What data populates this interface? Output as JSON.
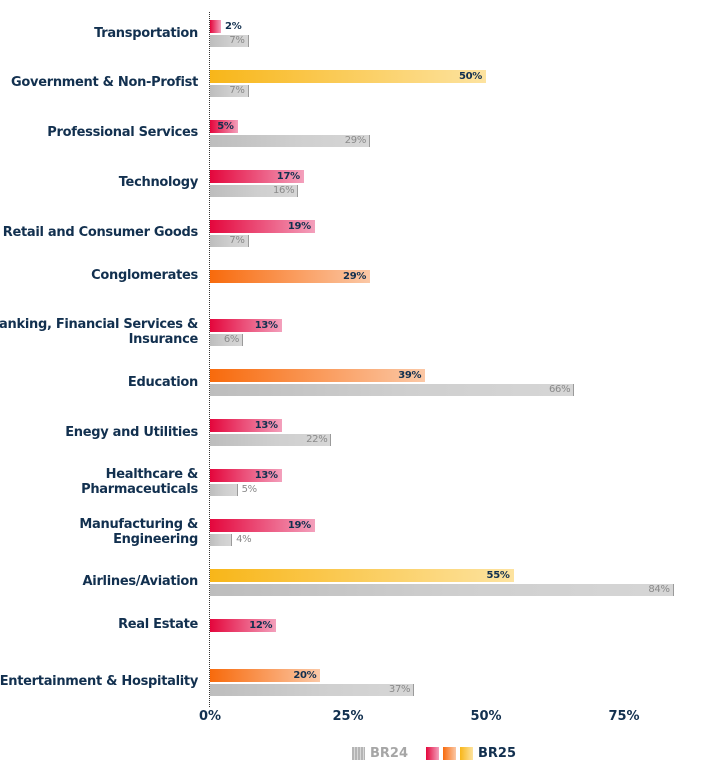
{
  "chart_data": {
    "type": "bar",
    "orientation": "horizontal",
    "title": "",
    "xlabel": "",
    "ylabel": "",
    "xlim": [
      0,
      85
    ],
    "x_ticks": [
      "0%",
      "25%",
      "50%",
      "75%"
    ],
    "x_tick_values": [
      0,
      25,
      50,
      75
    ],
    "grid": false,
    "legend_position": "bottom",
    "categories": [
      "Transportation",
      "Government & Non-Profist",
      "Professional Services",
      "Technology",
      "Retail and Consumer Goods",
      "Conglomerates",
      "Banking, Financial Services & Insurance",
      "Education",
      "Enegy and Utilities",
      "Healthcare & Pharmaceuticals",
      "Manufacturing & Engineering",
      "Airlines/Aviation",
      "Real Estate",
      "Entertainment & Hospitality"
    ],
    "category_label_lines": [
      [
        "Transportation"
      ],
      [
        "Government & Non-Profist"
      ],
      [
        "Professional Services"
      ],
      [
        "Technology"
      ],
      [
        "Retail and Consumer Goods"
      ],
      [
        "Conglomerates"
      ],
      [
        "Banking, Financial Services &",
        "Insurance"
      ],
      [
        "Education"
      ],
      [
        "Enegy and Utilities"
      ],
      [
        "Healthcare &",
        "Pharmaceuticals"
      ],
      [
        "Manufacturing &",
        "Engineering"
      ],
      [
        "Airlines/Aviation"
      ],
      [
        "Real Estate"
      ],
      [
        "Entertainment & Hospitality"
      ]
    ],
    "series": [
      {
        "name": "BR25",
        "values": [
          2,
          50,
          5,
          17,
          19,
          29,
          13,
          39,
          13,
          13,
          19,
          55,
          12,
          20
        ],
        "labels": [
          "2%",
          "50%",
          "5%",
          "17%",
          "19%",
          "29%",
          "13%",
          "39%",
          "13%",
          "13%",
          "19%",
          "55%",
          "12%",
          "20%"
        ],
        "color_groups": [
          "red",
          "yellow",
          "red",
          "red",
          "red",
          "orange",
          "red",
          "orange",
          "red",
          "red",
          "red",
          "yellow",
          "red",
          "orange"
        ]
      },
      {
        "name": "BR24",
        "values": [
          7,
          7,
          29,
          16,
          7,
          null,
          6,
          66,
          22,
          5,
          4,
          84,
          null,
          37
        ],
        "labels": [
          "7%",
          "7%",
          "29%",
          "16%",
          "7%",
          null,
          "6%",
          "66%",
          "22%",
          "5%",
          "4%",
          "84%",
          null,
          "37%"
        ]
      }
    ],
    "colors": {
      "red": [
        "#e4063c",
        "#f3a0bc"
      ],
      "orange": [
        "#f86a0c",
        "#fbc8a6"
      ],
      "yellow": [
        "#f8b619",
        "#fde3a0"
      ],
      "gray": [
        "#bdbdbd",
        "#d6d6d6"
      ],
      "text_dark": "#12304f",
      "text_gray": "#8a8a8a"
    },
    "legend": {
      "br24_label": "BR24",
      "br25_label": "BR25"
    }
  }
}
